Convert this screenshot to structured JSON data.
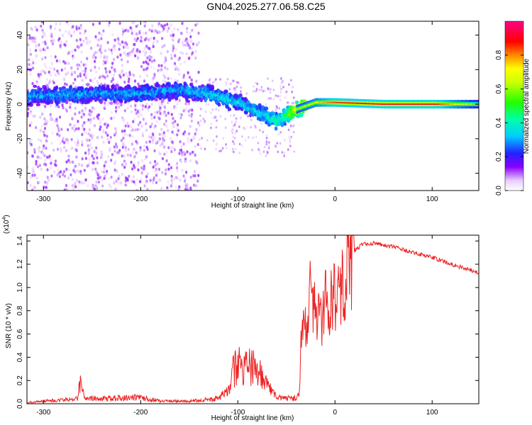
{
  "title": "GN04.2025.277.06.58.C25",
  "chart_data": [
    {
      "type": "heatmap",
      "xlabel": "Height of straight line (km)",
      "ylabel": "Frequency (Hz)",
      "xlim": [
        -317,
        148
      ],
      "ylim": [
        -50,
        48
      ],
      "x_ticks": [
        -300,
        -200,
        -100,
        0,
        100
      ],
      "x_tick_labels": [
        "-300",
        "-200",
        "-100",
        "0",
        "100"
      ],
      "y_ticks": [
        -40,
        -20,
        0,
        20,
        40
      ],
      "y_tick_labels": [
        "-40",
        "-20",
        "0",
        "20",
        "40"
      ],
      "colorbar": {
        "label": "Normalized spectral amplitude",
        "range": [
          0,
          1
        ],
        "ticks": [
          0.0,
          0.2,
          0.4,
          0.6,
          0.8
        ],
        "tick_labels": [
          "0.0",
          "0.2",
          "0.4",
          "0.6",
          "0.8"
        ]
      },
      "ridge": {
        "description_points": [
          {
            "x": -300,
            "y": 5,
            "amp": 0.3
          },
          {
            "x": -250,
            "y": 6,
            "amp": 0.3
          },
          {
            "x": -200,
            "y": 6,
            "amp": 0.3
          },
          {
            "x": -160,
            "y": 8,
            "amp": 0.3
          },
          {
            "x": -130,
            "y": 6,
            "amp": 0.35
          },
          {
            "x": -100,
            "y": 1,
            "amp": 0.35
          },
          {
            "x": -80,
            "y": -4,
            "amp": 0.35
          },
          {
            "x": -60,
            "y": -10,
            "amp": 0.4
          },
          {
            "x": -50,
            "y": -7,
            "amp": 0.5
          },
          {
            "x": -40,
            "y": -3,
            "amp": 0.7
          },
          {
            "x": -20,
            "y": 1,
            "amp": 0.8
          },
          {
            "x": 0,
            "y": 1,
            "amp": 0.95
          },
          {
            "x": 50,
            "y": 0,
            "amp": 1.0
          },
          {
            "x": 100,
            "y": 0,
            "amp": 1.0
          },
          {
            "x": 148,
            "y": 0,
            "amp": 0.6
          }
        ]
      }
    },
    {
      "type": "line",
      "xlabel": "Height of straight line (km)",
      "ylabel": "SNR (10 * v/v)",
      "y_scale_label": "(x10",
      "y_scale_exp": "4",
      "xlim": [
        -317,
        148
      ],
      "ylim": [
        0,
        1.45
      ],
      "x_ticks": [
        -300,
        -200,
        -100,
        0,
        100
      ],
      "x_tick_labels": [
        "-300",
        "-200",
        "-100",
        "0",
        "100"
      ],
      "y_ticks": [
        0.0,
        0.2,
        0.4,
        0.6,
        0.8,
        1.0,
        1.2,
        1.4
      ],
      "y_tick_labels": [
        "0.0",
        "0.2",
        "0.4",
        "0.6",
        "0.8",
        "1.0",
        "1.2",
        "1.4"
      ],
      "color": "#ee2222",
      "series": [
        {
          "name": "SNR",
          "x": [
            -317,
            -300,
            -280,
            -265,
            -262,
            -258,
            -240,
            -200,
            -180,
            -150,
            -120,
            -110,
            -105,
            -100,
            -95,
            -85,
            -75,
            -60,
            -45,
            -40,
            -37,
            -35,
            -30,
            -25,
            -20,
            -15,
            -10,
            -5,
            0,
            5,
            10,
            15,
            20,
            25,
            30,
            40,
            60,
            80,
            100,
            120,
            148
          ],
          "y": [
            0.01,
            0.02,
            0.03,
            0.04,
            0.2,
            0.04,
            0.04,
            0.05,
            0.02,
            0.02,
            0.04,
            0.1,
            0.25,
            0.3,
            0.25,
            0.3,
            0.2,
            0.05,
            0.04,
            0.04,
            0.1,
            0.5,
            0.8,
            1.0,
            0.9,
            0.8,
            0.9,
            1.0,
            1.05,
            1.1,
            1.2,
            1.3,
            1.32,
            1.35,
            1.38,
            1.38,
            1.35,
            1.3,
            1.26,
            1.2,
            1.13
          ]
        }
      ]
    }
  ]
}
